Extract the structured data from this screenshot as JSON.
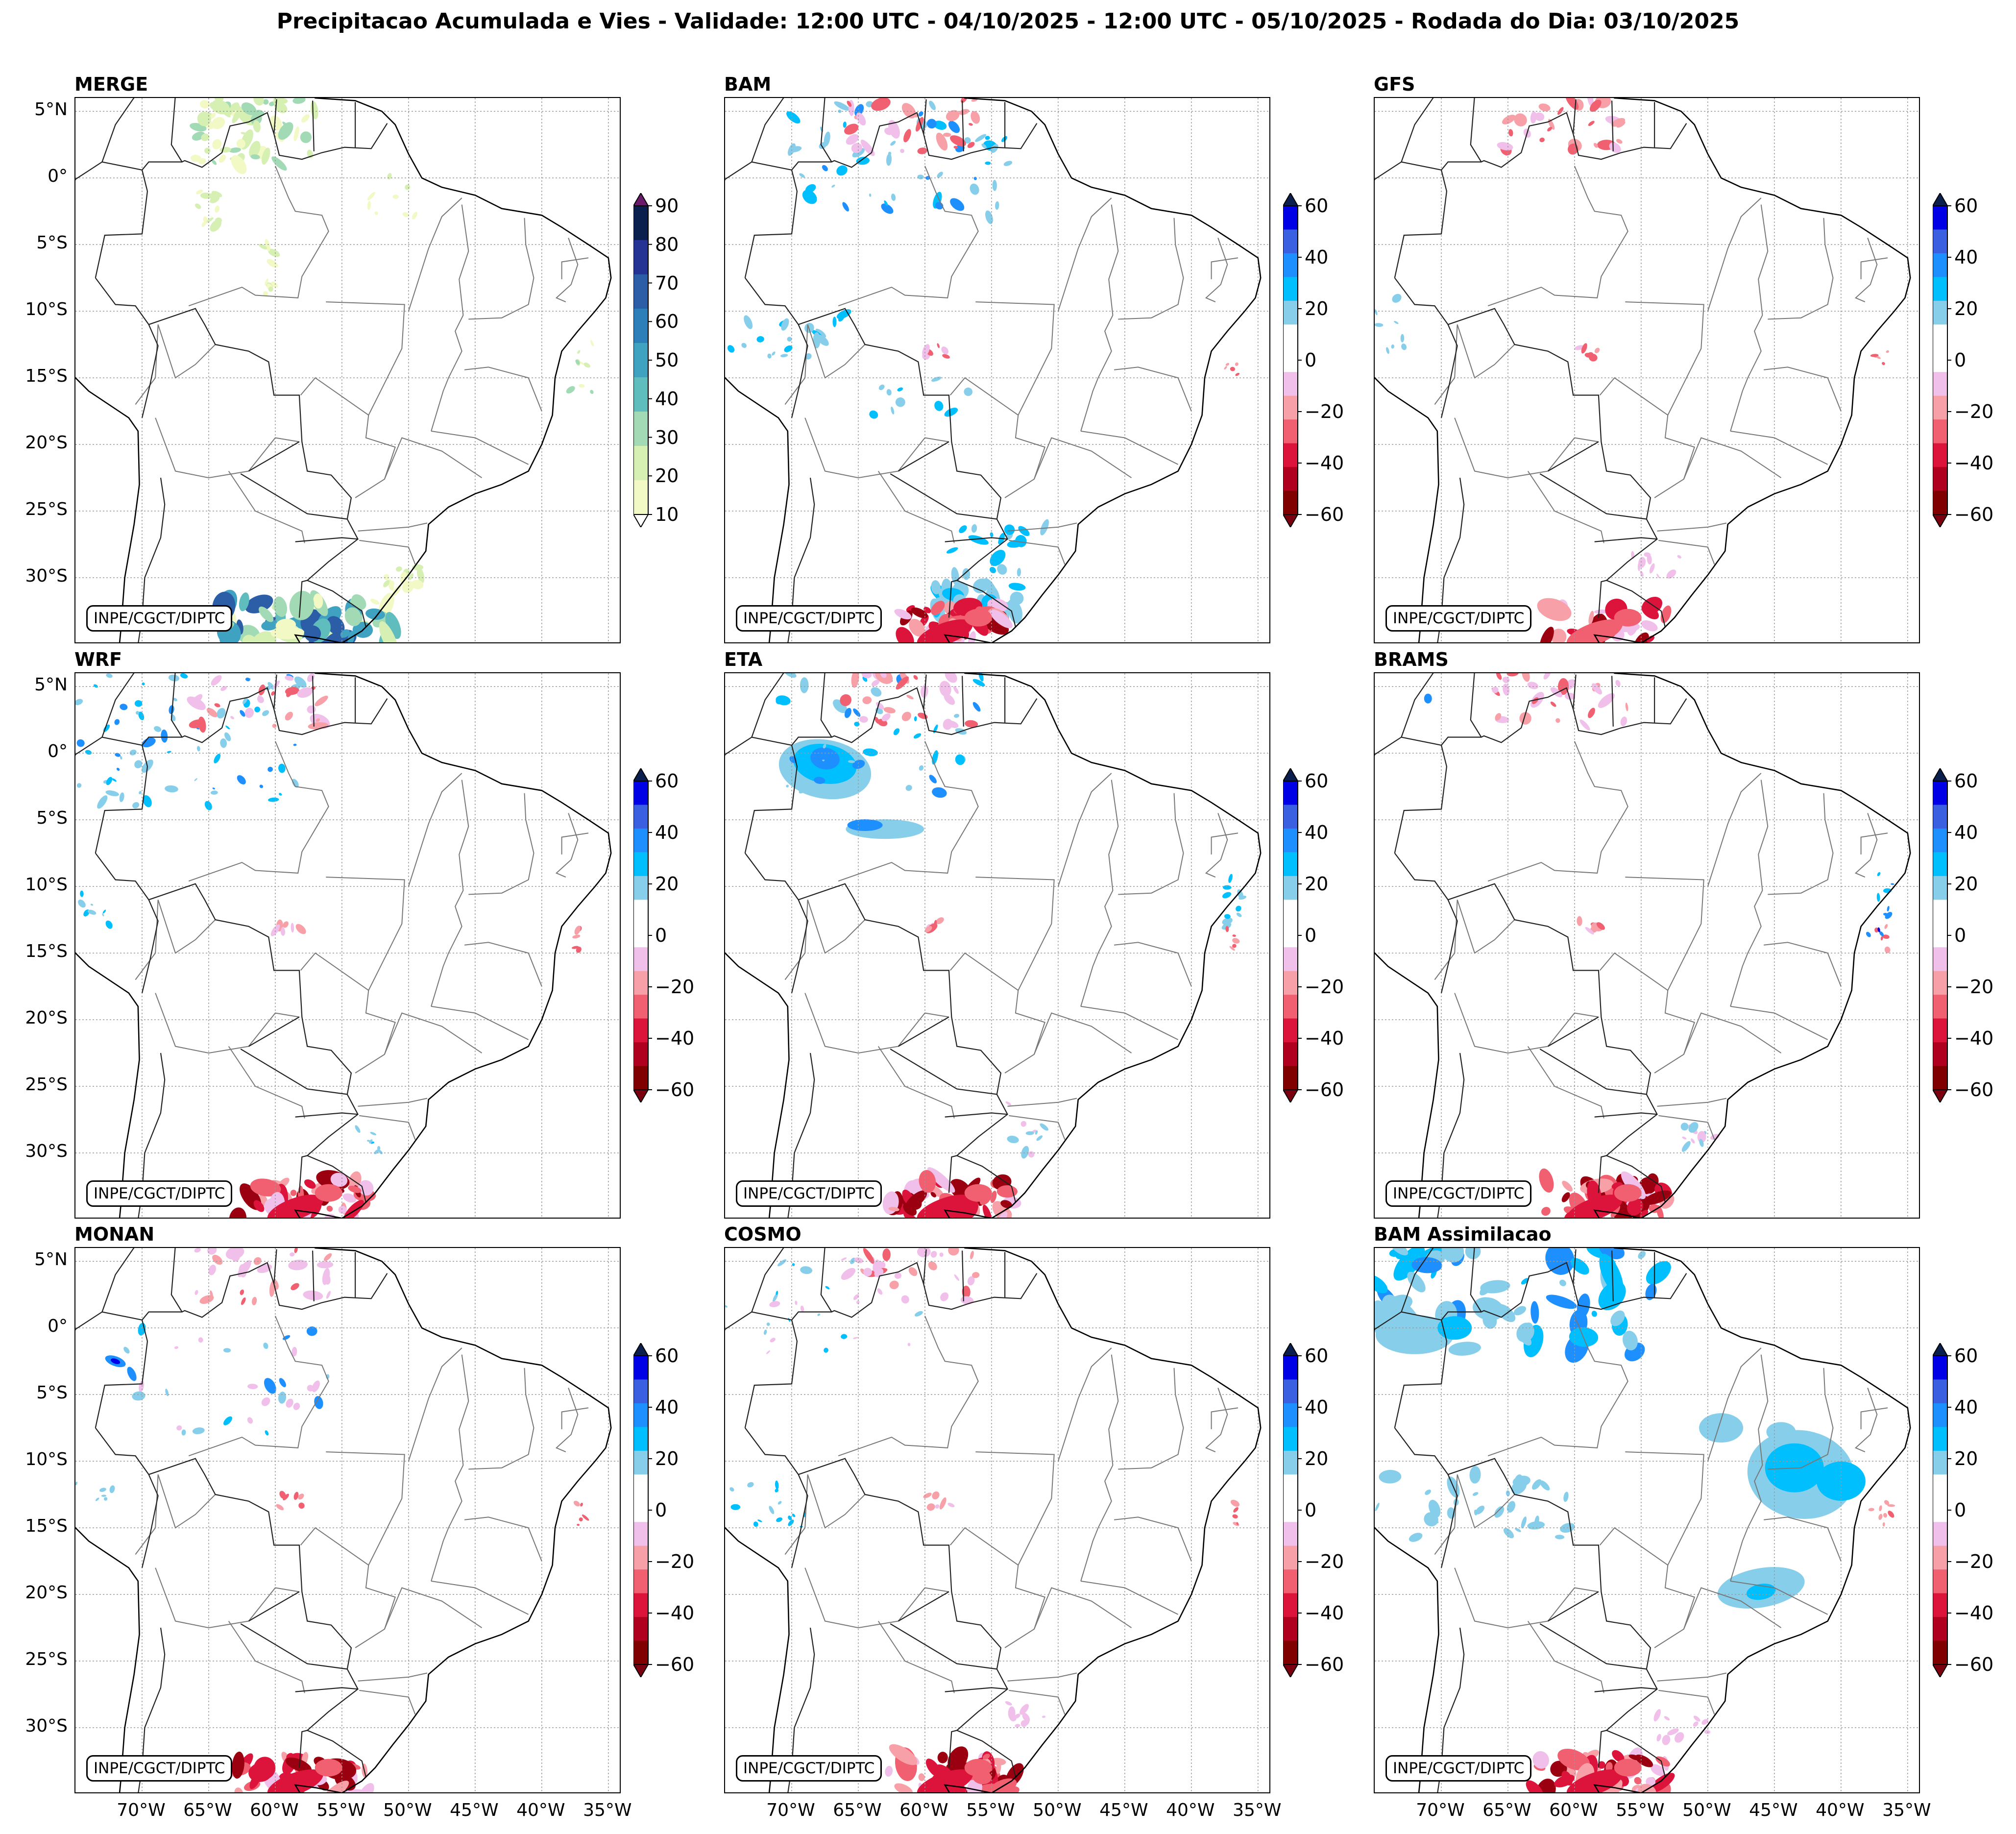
{
  "title": "Precipitacao Acumulada e Vies - Validade: 12:00 UTC - 04/10/2025 - 12:00 UTC - 05/10/2025 - Rodada do Dia: 03/10/2025",
  "credit": "INPE/CGCT/DIPTC",
  "lat_labels": [
    "5°N",
    "0°",
    "5°S",
    "10°S",
    "15°S",
    "20°S",
    "25°S",
    "30°S"
  ],
  "lon_labels": [
    "70°W",
    "65°W",
    "60°W",
    "55°W",
    "50°W",
    "45°W",
    "40°W",
    "35°W"
  ],
  "merge_colorbar": {
    "ticks": [
      "90",
      "80",
      "70",
      "60",
      "50",
      "40",
      "30",
      "20",
      "10"
    ],
    "colors": [
      "#0b1f4e",
      "#253494",
      "#2c5ea8",
      "#2c7fb8",
      "#3fa2c0",
      "#5fbdbd",
      "#a1dab4",
      "#d6efb3",
      "#f2f9c4"
    ],
    "over_color": "#6a1b6a"
  },
  "bias_colorbar": {
    "ticks": [
      "60",
      "40",
      "20",
      "0",
      "−20",
      "−40",
      "−60"
    ],
    "colors": [
      "#0000e6",
      "#3a5fe0",
      "#1e8fff",
      "#00bfff",
      "#87ceeb",
      "#ffffff",
      "#ffffff",
      "#f0c0ea",
      "#f7a0a8",
      "#f06070",
      "#dc143c",
      "#b00020",
      "#800000"
    ],
    "over_color": "#0b1f4e",
    "under_color": "#7a0010"
  },
  "panels": [
    {
      "title": "MERGE",
      "type": "merge"
    },
    {
      "title": "BAM",
      "type": "bias"
    },
    {
      "title": "GFS",
      "type": "bias"
    },
    {
      "title": "WRF",
      "type": "bias"
    },
    {
      "title": "ETA",
      "type": "bias"
    },
    {
      "title": "BRAMS",
      "type": "bias"
    },
    {
      "title": "MONAN",
      "type": "bias"
    },
    {
      "title": "COSMO",
      "type": "bias"
    },
    {
      "title": "BAM Assimilacao",
      "type": "bias"
    }
  ]
}
